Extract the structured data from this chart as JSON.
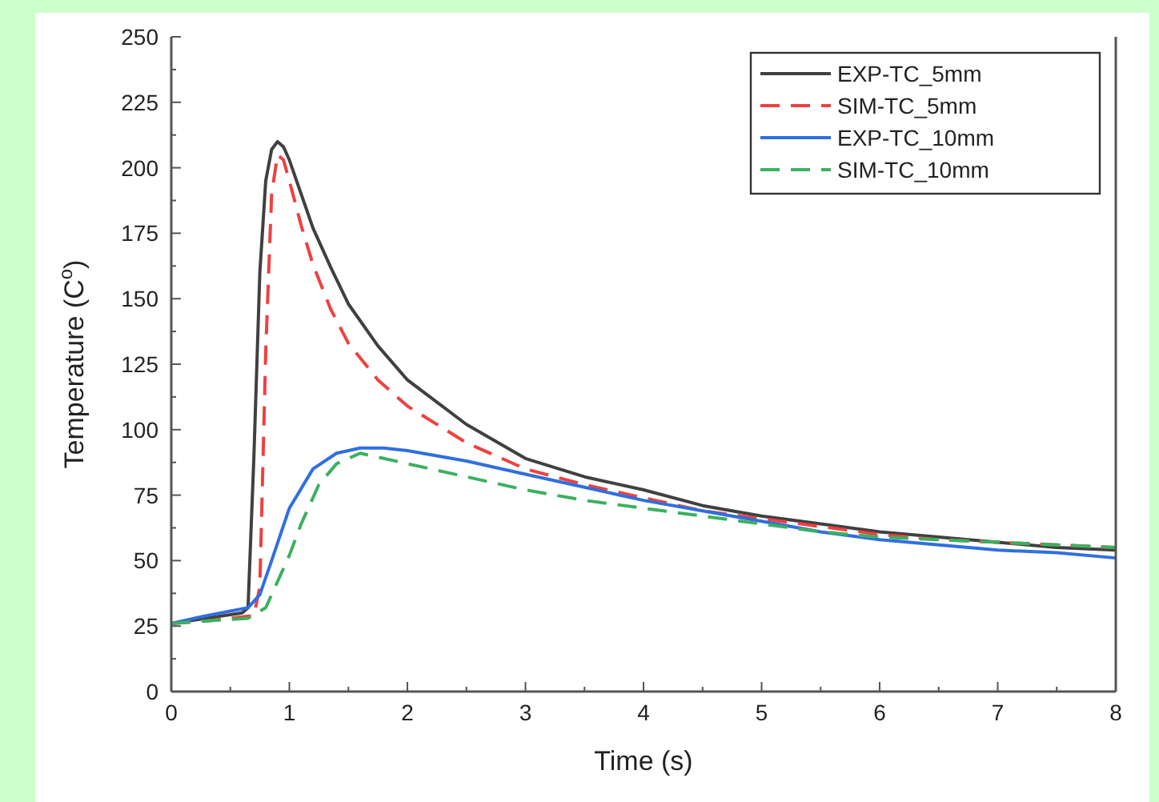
{
  "chart_data": {
    "type": "line",
    "xlabel": "Time (s)",
    "ylabel": "Temperature (C$^{o}$)",
    "xlim": [
      0,
      8
    ],
    "ylim": [
      0,
      250
    ],
    "xticks": [
      0,
      1,
      2,
      3,
      4,
      5,
      6,
      7,
      8
    ],
    "yticks": [
      0,
      25,
      50,
      75,
      100,
      125,
      150,
      175,
      200,
      225,
      250
    ],
    "legend": "top right",
    "grid": false,
    "series": [
      {
        "name": "EXP-TC_5mm",
        "color": "#404040",
        "line_style": "solid",
        "x": [
          0,
          0.3,
          0.6,
          0.65,
          0.7,
          0.75,
          0.8,
          0.85,
          0.9,
          0.95,
          1.0,
          1.1,
          1.2,
          1.35,
          1.5,
          1.75,
          2,
          2.5,
          3,
          3.5,
          4,
          4.5,
          5,
          5.5,
          6,
          6.5,
          7,
          7.5,
          8
        ],
        "values": [
          26,
          28,
          30,
          32,
          90,
          160,
          195,
          207,
          210,
          208,
          203,
          190,
          177,
          162,
          148,
          132,
          119,
          102,
          89,
          82,
          77,
          71,
          67,
          64,
          61,
          59,
          57,
          55,
          54
        ]
      },
      {
        "name": "SIM-TC_5mm",
        "color": "#f04040",
        "line_style": "dashed",
        "x": [
          0,
          0.3,
          0.7,
          0.75,
          0.8,
          0.85,
          0.9,
          0.95,
          1.0,
          1.1,
          1.2,
          1.35,
          1.5,
          1.75,
          2,
          2.5,
          3,
          3.5,
          4,
          4.5,
          5,
          5.5,
          6,
          6.5,
          7,
          7.5,
          8
        ],
        "values": [
          26,
          27,
          29,
          40,
          130,
          190,
          205,
          203,
          195,
          178,
          163,
          146,
          133,
          119,
          109,
          95,
          85,
          79,
          74,
          69,
          66,
          63,
          60,
          58,
          57,
          56,
          55
        ]
      },
      {
        "name": "EXP-TC_10mm",
        "color": "#2f6fe0",
        "line_style": "solid",
        "x": [
          0,
          0.3,
          0.65,
          0.75,
          0.85,
          1.0,
          1.2,
          1.4,
          1.6,
          1.8,
          2,
          2.5,
          3,
          3.5,
          4,
          4.5,
          5,
          5.5,
          6,
          6.5,
          7,
          7.5,
          8
        ],
        "values": [
          26,
          29,
          32,
          37,
          50,
          70,
          85,
          91,
          93,
          93,
          92,
          88,
          83,
          78,
          73,
          69,
          65,
          61,
          58,
          56,
          54,
          53,
          51
        ]
      },
      {
        "name": "SIM-TC_10mm",
        "color": "#3cb060",
        "line_style": "dashed",
        "x": [
          0,
          0.3,
          0.65,
          0.8,
          0.9,
          1.0,
          1.1,
          1.25,
          1.4,
          1.6,
          1.8,
          2,
          2.5,
          3,
          3.5,
          4,
          4.5,
          5,
          5.5,
          6,
          6.5,
          7,
          7.5,
          8
        ],
        "values": [
          26,
          27,
          28,
          32,
          42,
          52,
          64,
          79,
          87,
          91,
          89,
          87,
          82,
          77,
          73,
          70,
          67,
          64,
          61,
          59,
          58,
          57,
          56,
          55
        ]
      }
    ]
  }
}
